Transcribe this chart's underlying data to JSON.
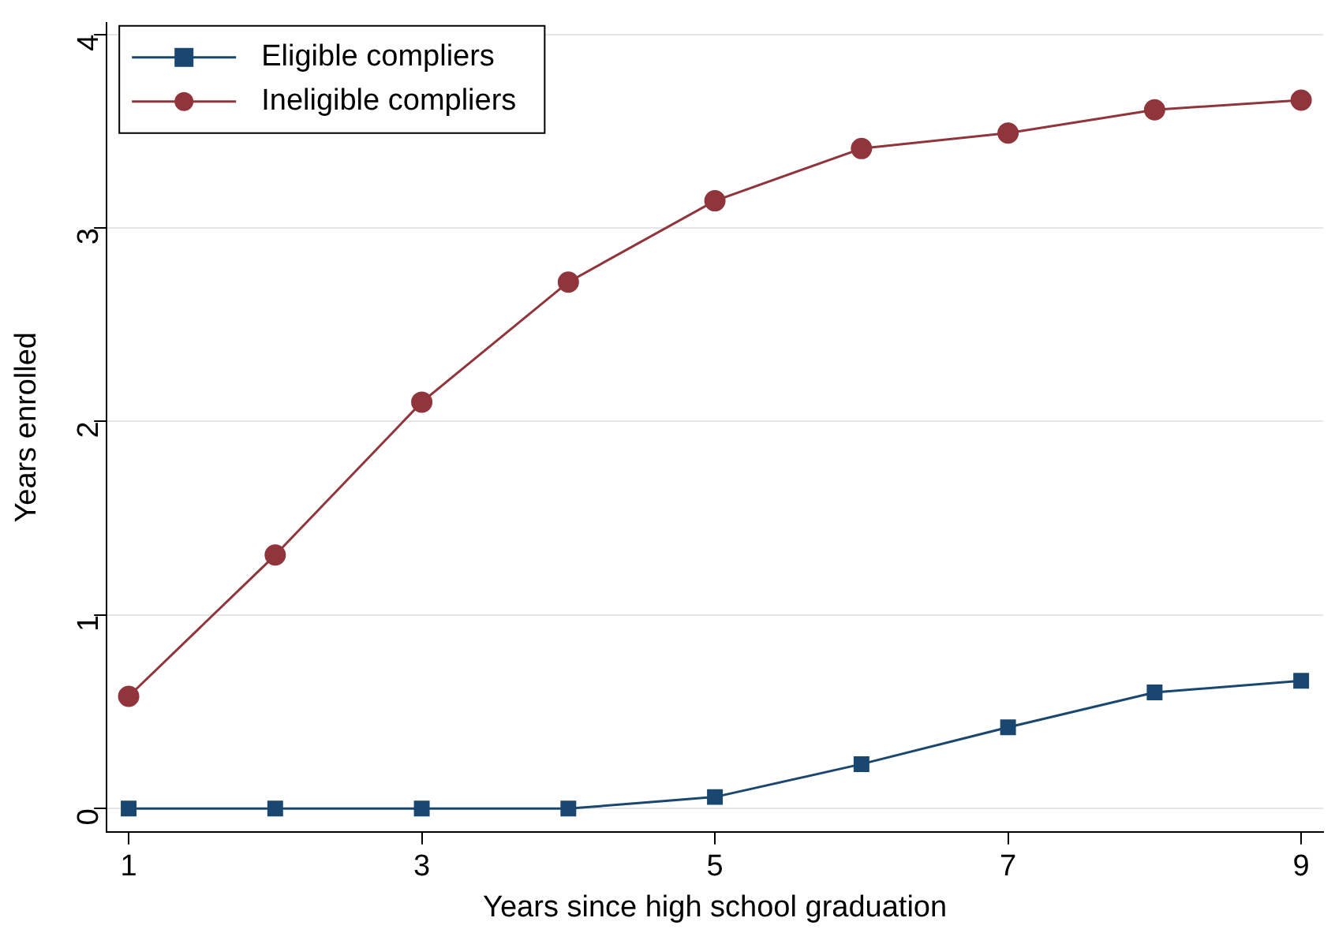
{
  "chart_data": {
    "type": "line",
    "xlabel": "Years since high school graduation",
    "ylabel": "Years enrolled",
    "x": [
      1,
      2,
      3,
      4,
      5,
      6,
      7,
      8,
      9
    ],
    "series": [
      {
        "name": "Eligible compliers",
        "color": "#1a476f",
        "marker": "square",
        "values": [
          0,
          0,
          0,
          0,
          0.06,
          0.23,
          0.42,
          0.6,
          0.66
        ]
      },
      {
        "name": "Ineligible compliers",
        "color": "#90353b",
        "marker": "circle",
        "values": [
          0.58,
          1.31,
          2.1,
          2.72,
          3.14,
          3.41,
          3.49,
          3.61,
          3.66
        ]
      }
    ],
    "xlim": [
      0.85,
      9.15
    ],
    "xticks": [
      1,
      3,
      5,
      7,
      9
    ],
    "ylim": [
      -0.12,
      4.06
    ],
    "yticks": [
      0,
      1,
      2,
      3,
      4
    ],
    "grid": "y",
    "legend": "top left",
    "line_style": "solid"
  }
}
